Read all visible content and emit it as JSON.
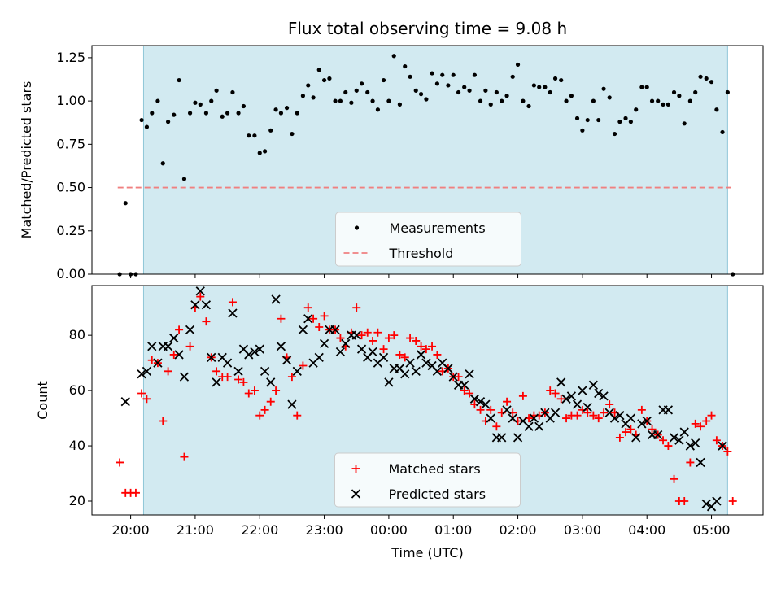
{
  "chart_data": [
    {
      "type": "scatter",
      "title": "Flux total observing time = 9.08 h",
      "xlabel": "",
      "ylabel": "Matched/Predicted stars",
      "x_unit": "hours since 00:00 UTC",
      "xlim": [
        -4.6,
        5.8
      ],
      "ylim": [
        0,
        1.32
      ],
      "yticks": [
        "0.00",
        "0.25",
        "0.50",
        "0.75",
        "1.00",
        "1.25"
      ],
      "ytick_values": [
        0,
        0.25,
        0.5,
        0.75,
        1.0,
        1.25
      ],
      "shaded_span": [
        -3.8,
        5.25
      ],
      "shade_color": "#add8e6",
      "grid": false,
      "legend": {
        "position": "lower-center",
        "entries": [
          "Measurements",
          "Threshold"
        ]
      },
      "series": [
        {
          "name": "Measurements",
          "marker": "dot",
          "color": "#000000",
          "x": [
            -4.17,
            -4.08,
            -4.0,
            -3.92,
            -3.83,
            -3.75,
            -3.67,
            -3.58,
            -3.5,
            -3.42,
            -3.33,
            -3.25,
            -3.17,
            -3.08,
            -3.0,
            -2.92,
            -2.83,
            -2.75,
            -2.67,
            -2.58,
            -2.5,
            -2.42,
            -2.33,
            -2.25,
            -2.17,
            -2.08,
            -2.0,
            -1.92,
            -1.83,
            -1.75,
            -1.67,
            -1.58,
            -1.5,
            -1.42,
            -1.33,
            -1.25,
            -1.17,
            -1.08,
            -1.0,
            -0.92,
            -0.83,
            -0.75,
            -0.67,
            -0.58,
            -0.5,
            -0.42,
            -0.33,
            -0.25,
            -0.17,
            -0.08,
            0.0,
            0.08,
            0.17,
            0.25,
            0.33,
            0.42,
            0.5,
            0.58,
            0.67,
            0.75,
            0.83,
            0.92,
            1.0,
            1.08,
            1.17,
            1.25,
            1.33,
            1.42,
            1.5,
            1.58,
            1.67,
            1.75,
            1.83,
            1.92,
            2.0,
            2.08,
            2.17,
            2.25,
            2.33,
            2.42,
            2.5,
            2.58,
            2.67,
            2.75,
            2.83,
            2.92,
            3.0,
            3.08,
            3.17,
            3.25,
            3.33,
            3.42,
            3.5,
            3.58,
            3.67,
            3.75,
            3.83,
            3.92,
            4.0,
            4.08,
            4.17,
            4.25,
            4.33,
            4.42,
            4.5,
            4.58,
            4.67,
            4.75,
            4.83,
            4.92,
            5.0,
            5.08,
            5.17,
            5.25,
            5.33
          ],
          "y": [
            0.0,
            0.41,
            0.0,
            0.0,
            0.89,
            0.85,
            0.93,
            1.0,
            0.64,
            0.88,
            0.92,
            1.12,
            0.55,
            0.93,
            0.99,
            0.98,
            0.93,
            1.0,
            1.06,
            0.91,
            0.93,
            1.05,
            0.93,
            0.97,
            0.8,
            0.8,
            0.7,
            0.71,
            0.83,
            0.95,
            0.93,
            0.96,
            0.81,
            0.93,
            1.03,
            1.09,
            1.02,
            1.18,
            1.12,
            1.13,
            1.0,
            1.0,
            1.05,
            0.99,
            1.06,
            1.1,
            1.05,
            1.0,
            0.95,
            1.12,
            1.0,
            1.26,
            0.98,
            1.2,
            1.14,
            1.06,
            1.04,
            1.01,
            1.16,
            1.1,
            1.15,
            1.09,
            1.15,
            1.05,
            1.08,
            1.06,
            1.15,
            1.0,
            1.06,
            0.98,
            1.05,
            1.0,
            1.03,
            1.14,
            1.21,
            1.0,
            0.97,
            1.09,
            1.08,
            1.08,
            1.05,
            1.13,
            1.12,
            1.0,
            1.03,
            0.9,
            0.83,
            0.89,
            1.0,
            0.89,
            1.07,
            1.02,
            0.81,
            0.88,
            0.9,
            0.88,
            0.95,
            1.08,
            1.08,
            1.0,
            1.0,
            0.98,
            0.98,
            1.05,
            1.03,
            0.87,
            1.0,
            1.05,
            1.14,
            1.13,
            1.11,
            0.95,
            0.82,
            1.05,
            0.0
          ]
        },
        {
          "name": "Threshold",
          "type": "line",
          "style": "dashed",
          "color": "#f08080",
          "x": [
            -4.2,
            5.3
          ],
          "y": [
            0.5,
            0.5
          ]
        }
      ]
    },
    {
      "type": "scatter",
      "title": "",
      "xlabel": "Time (UTC)",
      "ylabel": "Count",
      "x_unit": "hours since 00:00 UTC",
      "xlim": [
        -4.6,
        5.8
      ],
      "ylim": [
        15,
        98
      ],
      "yticks": [
        "20",
        "40",
        "60",
        "80"
      ],
      "ytick_values": [
        20,
        40,
        60,
        80
      ],
      "xticks": [
        "20:00",
        "21:00",
        "22:00",
        "23:00",
        "00:00",
        "01:00",
        "02:00",
        "03:00",
        "04:00",
        "05:00"
      ],
      "xtick_values": [
        -4,
        -3,
        -2,
        -1,
        0,
        1,
        2,
        3,
        4,
        5
      ],
      "shaded_span": [
        -3.8,
        5.25
      ],
      "shade_color": "#add8e6",
      "grid": false,
      "legend": {
        "position": "lower-center",
        "entries": [
          "Matched stars",
          "Predicted stars"
        ]
      },
      "series": [
        {
          "name": "Matched stars",
          "marker": "plus",
          "color": "#ff0000",
          "x": [
            -4.17,
            -4.08,
            -4.0,
            -3.92,
            -3.83,
            -3.75,
            -3.67,
            -3.58,
            -3.5,
            -3.42,
            -3.33,
            -3.25,
            -3.17,
            -3.08,
            -3.0,
            -2.92,
            -2.83,
            -2.75,
            -2.67,
            -2.58,
            -2.5,
            -2.42,
            -2.33,
            -2.25,
            -2.17,
            -2.08,
            -2.0,
            -1.92,
            -1.83,
            -1.75,
            -1.67,
            -1.58,
            -1.5,
            -1.42,
            -1.33,
            -1.25,
            -1.17,
            -1.08,
            -1.0,
            -0.92,
            -0.83,
            -0.75,
            -0.67,
            -0.58,
            -0.5,
            -0.42,
            -0.33,
            -0.25,
            -0.17,
            -0.08,
            0.0,
            0.08,
            0.17,
            0.25,
            0.33,
            0.42,
            0.5,
            0.58,
            0.67,
            0.75,
            0.83,
            0.92,
            1.0,
            1.08,
            1.17,
            1.25,
            1.33,
            1.42,
            1.5,
            1.58,
            1.67,
            1.75,
            1.83,
            1.92,
            2.0,
            2.08,
            2.17,
            2.25,
            2.33,
            2.42,
            2.5,
            2.58,
            2.67,
            2.75,
            2.83,
            2.92,
            3.0,
            3.08,
            3.17,
            3.25,
            3.33,
            3.42,
            3.5,
            3.58,
            3.67,
            3.75,
            3.83,
            3.92,
            4.0,
            4.08,
            4.17,
            4.25,
            4.33,
            4.42,
            4.5,
            4.58,
            4.67,
            4.75,
            4.83,
            4.92,
            5.0,
            5.08,
            5.17,
            5.25,
            5.33
          ],
          "y": [
            34,
            23,
            23,
            23,
            59,
            57,
            71,
            70,
            49,
            67,
            73,
            82,
            36,
            76,
            90,
            94,
            85,
            72,
            67,
            65,
            65,
            92,
            64,
            63,
            59,
            60,
            51,
            53,
            56,
            60,
            86,
            72,
            65,
            51,
            69,
            90,
            86,
            83,
            87,
            82,
            82,
            79,
            76,
            81,
            90,
            80,
            81,
            78,
            81,
            75,
            79,
            80,
            73,
            72,
            79,
            78,
            76,
            75,
            76,
            73,
            67,
            68,
            65,
            65,
            60,
            59,
            55,
            53,
            49,
            53,
            47,
            52,
            56,
            52,
            49,
            58,
            50,
            51,
            51,
            52,
            60,
            59,
            57,
            50,
            51,
            51,
            53,
            52,
            51,
            50,
            52,
            55,
            52,
            43,
            45,
            46,
            44,
            53,
            49,
            46,
            44,
            42,
            40,
            28,
            20,
            20,
            34,
            48,
            47,
            49,
            51,
            42,
            40,
            38,
            20
          ]
        },
        {
          "name": "Predicted stars",
          "marker": "x",
          "color": "#000000",
          "x": [
            -4.08,
            -3.83,
            -3.75,
            -3.67,
            -3.58,
            -3.5,
            -3.42,
            -3.33,
            -3.25,
            -3.17,
            -3.08,
            -3.0,
            -2.92,
            -2.83,
            -2.75,
            -2.67,
            -2.58,
            -2.5,
            -2.42,
            -2.33,
            -2.25,
            -2.17,
            -2.08,
            -2.0,
            -1.92,
            -1.83,
            -1.75,
            -1.67,
            -1.58,
            -1.5,
            -1.42,
            -1.33,
            -1.25,
            -1.17,
            -1.08,
            -1.0,
            -0.92,
            -0.83,
            -0.75,
            -0.67,
            -0.58,
            -0.5,
            -0.42,
            -0.33,
            -0.25,
            -0.17,
            -0.08,
            0.0,
            0.08,
            0.17,
            0.25,
            0.33,
            0.42,
            0.5,
            0.58,
            0.67,
            0.75,
            0.83,
            0.92,
            1.0,
            1.08,
            1.17,
            1.25,
            1.33,
            1.42,
            1.5,
            1.58,
            1.67,
            1.75,
            1.83,
            1.92,
            2.0,
            2.08,
            2.17,
            2.25,
            2.33,
            2.42,
            2.5,
            2.58,
            2.67,
            2.75,
            2.83,
            2.92,
            3.0,
            3.08,
            3.17,
            3.25,
            3.33,
            3.42,
            3.5,
            3.58,
            3.67,
            3.75,
            3.83,
            3.92,
            4.0,
            4.08,
            4.17,
            4.25,
            4.33,
            4.42,
            4.5,
            4.58,
            4.67,
            4.75,
            4.83,
            4.92,
            5.0,
            5.08,
            5.17
          ],
          "y": [
            56,
            66,
            67,
            76,
            70,
            76,
            76,
            79,
            73,
            65,
            82,
            91,
            96,
            91,
            72,
            63,
            72,
            70,
            88,
            67,
            75,
            73,
            74,
            75,
            67,
            63,
            93,
            76,
            71,
            55,
            67,
            82,
            86,
            70,
            72,
            77,
            82,
            82,
            74,
            77,
            80,
            80,
            75,
            72,
            74,
            70,
            72,
            63,
            68,
            68,
            66,
            70,
            67,
            73,
            70,
            69,
            67,
            70,
            68,
            65,
            62,
            62,
            66,
            57,
            56,
            55,
            50,
            43,
            43,
            53,
            50,
            43,
            49,
            47,
            50,
            47,
            52,
            50,
            52,
            63,
            57,
            58,
            55,
            60,
            54,
            62,
            59,
            58,
            52,
            50,
            51,
            48,
            50,
            43,
            48,
            49,
            44,
            44,
            53,
            53,
            43,
            42,
            45,
            40,
            41,
            34,
            19,
            18,
            20,
            40
          ]
        }
      ]
    }
  ]
}
